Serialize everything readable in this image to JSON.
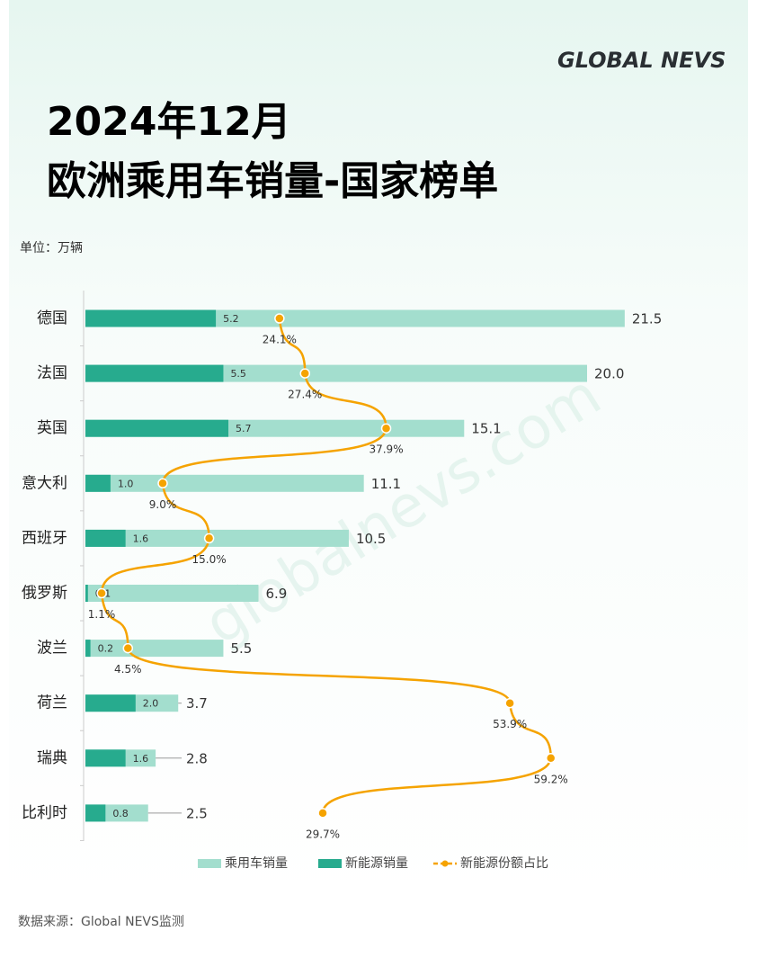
{
  "brand": "GLOBAL NEVS",
  "watermark": "globalnevs.com",
  "source": "数据来源：Global NEVS监测",
  "chart_data": {
    "type": "bar",
    "orientation": "horizontal",
    "title": [
      "2024年12月",
      "欧洲乘用车销量-国家榜单"
    ],
    "subtitle": "单位：万辆",
    "categories": [
      "德国",
      "法国",
      "英国",
      "意大利",
      "西班牙",
      "俄罗斯",
      "波兰",
      "荷兰",
      "瑞典",
      "比利时"
    ],
    "xlim": [
      0,
      30
    ],
    "x2lim": [
      -1,
      99
    ],
    "series": [
      {
        "name": "乘用车销量",
        "color": "#a3dece",
        "values": [
          21.5,
          20.0,
          15.1,
          11.1,
          10.5,
          6.9,
          5.5,
          3.7,
          2.8,
          2.5
        ],
        "value_labels": [
          "21.5",
          "20.0",
          "15.1",
          "11.1",
          "10.5",
          "6.9",
          "5.5",
          "3.7",
          "2.8",
          "2.5"
        ]
      },
      {
        "name": "新能源销量",
        "color": "#27ab8e",
        "values": [
          5.2,
          5.5,
          5.7,
          1.0,
          1.6,
          0.1,
          0.2,
          2.0,
          1.6,
          0.8
        ],
        "value_labels": [
          "5.2",
          "5.5",
          "5.7",
          "1.0",
          "1.6",
          "0.1",
          "0.2",
          "2.0",
          "1.6",
          "0.8"
        ]
      },
      {
        "name": "新能源份额占比",
        "color": "#f5a300",
        "axis": "x2",
        "type": "line",
        "values": [
          24.1,
          27.4,
          37.9,
          9.0,
          15.0,
          1.1,
          4.5,
          53.9,
          59.2,
          29.7
        ],
        "value_labels": [
          "24.1%",
          "27.4%",
          "37.9%",
          "9.0%",
          "15.0%",
          "1.1%",
          "4.5%",
          "53.9%",
          "59.2%",
          "29.7%"
        ]
      }
    ]
  }
}
